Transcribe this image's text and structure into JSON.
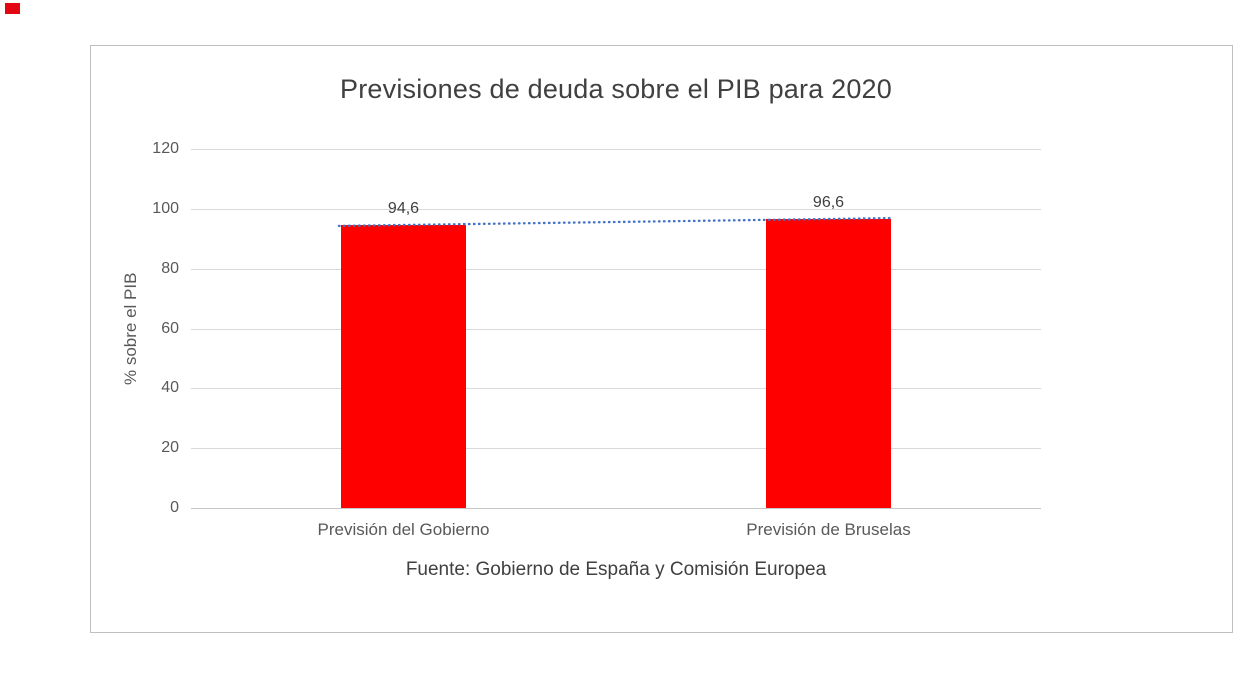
{
  "chart_data": {
    "type": "bar",
    "title": "Previsiones de deuda sobre el PIB para 2020",
    "categories": [
      "Previsión del Gobierno",
      "Previsión de Bruselas"
    ],
    "values": [
      94.6,
      96.6
    ],
    "value_labels": [
      "94,6",
      "96,6"
    ],
    "ylabel": "% sobre el PIB",
    "xlabel": "",
    "ylim": [
      0,
      120
    ],
    "yticks": [
      0,
      20,
      40,
      60,
      80,
      100,
      120
    ],
    "grid": true,
    "legend": "none",
    "source": "Fuente: Gobierno de España y Comisión Europea",
    "bar_color": "#fe0000",
    "trendline": {
      "type": "linear",
      "style": "dotted",
      "color": "#4472c4"
    },
    "grid_color": "#d9d9d9",
    "border_color": "#bfbfbf",
    "title_color": "#404040",
    "tick_color": "#595959"
  },
  "decor": {
    "corner_mark_color": "#e30613"
  }
}
